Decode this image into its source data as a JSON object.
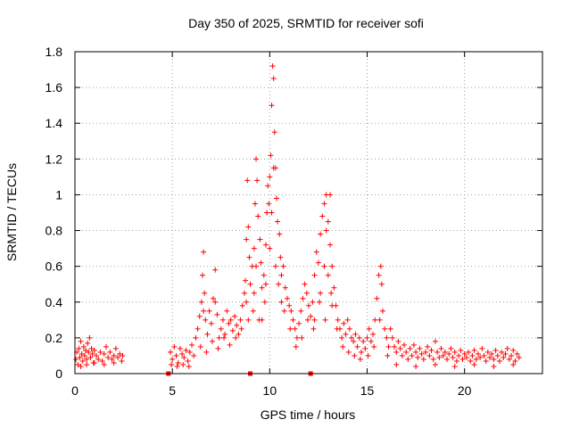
{
  "chart_data": {
    "type": "scatter",
    "title": "Day 350 of 2025, SRMTID for receiver sofi",
    "xlabel": "GPS time / hours",
    "ylabel": "SRMTID / TECUs",
    "xlim": [
      0,
      24
    ],
    "ylim": [
      0,
      1.8
    ],
    "x_ticks": [
      0,
      5,
      10,
      15,
      20
    ],
    "x_tick_labels": [
      "0",
      "5",
      "10",
      "15",
      "20"
    ],
    "y_ticks": [
      0,
      0.2,
      0.4,
      0.6,
      0.8,
      1,
      1.2,
      1.4,
      1.6,
      1.8
    ],
    "y_tick_labels": [
      "0",
      "0.2",
      "0.4",
      "0.6",
      "0.8",
      "1",
      "1.2",
      "1.4",
      "1.6",
      "1.8"
    ],
    "grid": true,
    "marker": "plus",
    "marker_color": "#ff0000",
    "gap_markers_x": [
      4.8,
      9.0,
      12.1
    ],
    "series": [
      {
        "name": "SRMTID",
        "points": [
          [
            0.05,
            0.08
          ],
          [
            0.1,
            0.12
          ],
          [
            0.15,
            0.05
          ],
          [
            0.2,
            0.14
          ],
          [
            0.25,
            0.09
          ],
          [
            0.3,
            0.18
          ],
          [
            0.35,
            0.11
          ],
          [
            0.4,
            0.07
          ],
          [
            0.45,
            0.15
          ],
          [
            0.5,
            0.1
          ],
          [
            0.55,
            0.13
          ],
          [
            0.6,
            0.08
          ],
          [
            0.65,
            0.17
          ],
          [
            0.7,
            0.12
          ],
          [
            0.75,
            0.2
          ],
          [
            0.8,
            0.09
          ],
          [
            0.85,
            0.14
          ],
          [
            0.9,
            0.11
          ],
          [
            0.95,
            0.06
          ],
          [
            1.0,
            0.13
          ],
          [
            1.1,
            0.1
          ],
          [
            1.2,
            0.08
          ],
          [
            1.3,
            0.12
          ],
          [
            1.4,
            0.07
          ],
          [
            1.5,
            0.11
          ],
          [
            1.6,
            0.15
          ],
          [
            1.7,
            0.09
          ],
          [
            1.8,
            0.12
          ],
          [
            1.9,
            0.08
          ],
          [
            2.0,
            0.1
          ],
          [
            2.1,
            0.14
          ],
          [
            2.2,
            0.09
          ],
          [
            2.3,
            0.11
          ],
          [
            2.4,
            0.07
          ],
          [
            2.45,
            0.1
          ],
          [
            0.3,
            0.04
          ],
          [
            0.6,
            0.05
          ],
          [
            1.0,
            0.06
          ],
          [
            1.5,
            0.05
          ],
          [
            2.0,
            0.06
          ],
          [
            4.9,
            0.12
          ],
          [
            5.0,
            0.08
          ],
          [
            5.1,
            0.15
          ],
          [
            5.2,
            0.1
          ],
          [
            5.3,
            0.06
          ],
          [
            5.4,
            0.14
          ],
          [
            5.5,
            0.11
          ],
          [
            5.6,
            0.09
          ],
          [
            5.7,
            0.13
          ],
          [
            5.8,
            0.07
          ],
          [
            5.9,
            0.12
          ],
          [
            6.0,
            0.16
          ],
          [
            6.1,
            0.1
          ],
          [
            6.2,
            0.2
          ],
          [
            6.3,
            0.25
          ],
          [
            6.4,
            0.32
          ],
          [
            6.5,
            0.4
          ],
          [
            6.55,
            0.55
          ],
          [
            6.6,
            0.68
          ],
          [
            6.65,
            0.45
          ],
          [
            6.7,
            0.3
          ],
          [
            6.8,
            0.22
          ],
          [
            6.9,
            0.35
          ],
          [
            7.0,
            0.28
          ],
          [
            7.1,
            0.42
          ],
          [
            7.2,
            0.58
          ],
          [
            7.3,
            0.33
          ],
          [
            7.4,
            0.2
          ],
          [
            7.5,
            0.25
          ],
          [
            7.6,
            0.3
          ],
          [
            7.7,
            0.22
          ],
          [
            7.8,
            0.35
          ],
          [
            7.9,
            0.28
          ],
          [
            8.0,
            0.3
          ],
          [
            8.1,
            0.24
          ],
          [
            8.2,
            0.32
          ],
          [
            8.3,
            0.27
          ],
          [
            8.4,
            0.22
          ],
          [
            8.5,
            0.3
          ],
          [
            8.6,
            0.38
          ],
          [
            8.7,
            0.45
          ],
          [
            8.75,
            0.52
          ],
          [
            8.8,
            0.75
          ],
          [
            8.85,
            1.08
          ],
          [
            8.9,
            0.82
          ],
          [
            8.95,
            0.65
          ],
          [
            9.0,
            0.5
          ],
          [
            9.1,
            0.6
          ],
          [
            9.2,
            0.7
          ],
          [
            9.25,
            0.95
          ],
          [
            9.3,
            1.2
          ],
          [
            9.35,
            1.08
          ],
          [
            9.4,
            0.88
          ],
          [
            9.5,
            0.75
          ],
          [
            9.55,
            0.62
          ],
          [
            9.6,
            0.48
          ],
          [
            9.7,
            0.55
          ],
          [
            9.8,
            0.72
          ],
          [
            9.85,
            0.9
          ],
          [
            9.9,
            1.05
          ],
          [
            9.95,
            0.95
          ],
          [
            10.0,
            1.1
          ],
          [
            10.05,
            1.22
          ],
          [
            10.1,
            1.5
          ],
          [
            10.15,
            1.72
          ],
          [
            10.2,
            1.65
          ],
          [
            10.25,
            1.35
          ],
          [
            10.3,
            1.15
          ],
          [
            10.35,
            0.98
          ],
          [
            10.4,
            0.85
          ],
          [
            10.5,
            0.78
          ],
          [
            10.55,
            0.65
          ],
          [
            10.6,
            0.55
          ],
          [
            10.7,
            0.6
          ],
          [
            10.8,
            0.48
          ],
          [
            10.9,
            0.42
          ],
          [
            11.0,
            0.38
          ],
          [
            11.1,
            0.35
          ],
          [
            11.2,
            0.3
          ],
          [
            11.3,
            0.25
          ],
          [
            11.4,
            0.2
          ],
          [
            11.5,
            0.28
          ],
          [
            11.6,
            0.35
          ],
          [
            11.7,
            0.42
          ],
          [
            11.8,
            0.5
          ],
          [
            11.9,
            0.45
          ],
          [
            12.0,
            0.38
          ],
          [
            12.1,
            0.32
          ],
          [
            12.2,
            0.4
          ],
          [
            12.3,
            0.55
          ],
          [
            12.4,
            0.68
          ],
          [
            12.5,
            0.62
          ],
          [
            12.6,
            0.78
          ],
          [
            12.7,
            0.88
          ],
          [
            12.8,
            0.95
          ],
          [
            12.9,
            1.0
          ],
          [
            13.0,
            0.85
          ],
          [
            13.1,
            0.72
          ],
          [
            13.2,
            0.6
          ],
          [
            13.3,
            0.48
          ],
          [
            13.4,
            0.38
          ],
          [
            13.5,
            0.3
          ],
          [
            13.6,
            0.25
          ],
          [
            13.7,
            0.2
          ],
          [
            13.8,
            0.28
          ],
          [
            13.9,
            0.22
          ],
          [
            14.0,
            0.3
          ],
          [
            14.1,
            0.25
          ],
          [
            14.2,
            0.2
          ],
          [
            14.3,
            0.18
          ],
          [
            14.4,
            0.22
          ],
          [
            14.5,
            0.15
          ],
          [
            14.6,
            0.2
          ],
          [
            14.7,
            0.12
          ],
          [
            14.8,
            0.18
          ],
          [
            14.9,
            0.14
          ],
          [
            15.0,
            0.2
          ],
          [
            15.1,
            0.25
          ],
          [
            15.2,
            0.18
          ],
          [
            15.3,
            0.22
          ],
          [
            15.4,
            0.3
          ],
          [
            15.5,
            0.42
          ],
          [
            15.6,
            0.55
          ],
          [
            15.7,
            0.6
          ],
          [
            15.75,
            0.5
          ],
          [
            15.8,
            0.35
          ],
          [
            15.9,
            0.25
          ],
          [
            16.0,
            0.2
          ],
          [
            16.1,
            0.15
          ],
          [
            16.2,
            0.25
          ],
          [
            16.3,
            0.2
          ],
          [
            16.4,
            0.15
          ],
          [
            16.5,
            0.12
          ],
          [
            16.6,
            0.18
          ],
          [
            16.7,
            0.14
          ],
          [
            16.8,
            0.1
          ],
          [
            16.9,
            0.16
          ],
          [
            17.0,
            0.12
          ],
          [
            17.1,
            0.08
          ],
          [
            17.2,
            0.14
          ],
          [
            17.3,
            0.1
          ],
          [
            17.4,
            0.16
          ],
          [
            17.5,
            0.12
          ],
          [
            17.6,
            0.09
          ],
          [
            17.7,
            0.14
          ],
          [
            17.8,
            0.11
          ],
          [
            17.9,
            0.08
          ],
          [
            18.0,
            0.12
          ],
          [
            18.1,
            0.15
          ],
          [
            18.2,
            0.1
          ],
          [
            18.3,
            0.13
          ],
          [
            18.4,
            0.08
          ],
          [
            18.5,
            0.18
          ],
          [
            18.6,
            0.12
          ],
          [
            18.7,
            0.09
          ],
          [
            18.8,
            0.14
          ],
          [
            18.9,
            0.1
          ],
          [
            19.0,
            0.12
          ],
          [
            19.1,
            0.08
          ],
          [
            19.2,
            0.11
          ],
          [
            19.3,
            0.14
          ],
          [
            19.4,
            0.09
          ],
          [
            19.5,
            0.12
          ],
          [
            19.6,
            0.07
          ],
          [
            19.7,
            0.1
          ],
          [
            19.8,
            0.13
          ],
          [
            19.9,
            0.08
          ],
          [
            20.0,
            0.11
          ],
          [
            20.1,
            0.09
          ],
          [
            20.2,
            0.12
          ],
          [
            20.3,
            0.07
          ],
          [
            20.4,
            0.1
          ],
          [
            20.5,
            0.13
          ],
          [
            20.6,
            0.08
          ],
          [
            20.7,
            0.11
          ],
          [
            20.8,
            0.09
          ],
          [
            20.9,
            0.14
          ],
          [
            21.0,
            0.1
          ],
          [
            21.1,
            0.07
          ],
          [
            21.2,
            0.12
          ],
          [
            21.3,
            0.09
          ],
          [
            21.4,
            0.11
          ],
          [
            21.5,
            0.08
          ],
          [
            21.6,
            0.13
          ],
          [
            21.7,
            0.1
          ],
          [
            21.8,
            0.07
          ],
          [
            21.9,
            0.12
          ],
          [
            22.0,
            0.09
          ],
          [
            22.1,
            0.11
          ],
          [
            22.2,
            0.14
          ],
          [
            22.3,
            0.08
          ],
          [
            22.4,
            0.1
          ],
          [
            22.5,
            0.13
          ],
          [
            22.6,
            0.07
          ],
          [
            22.7,
            0.11
          ],
          [
            22.8,
            0.09
          ],
          [
            6.45,
            0.15
          ],
          [
            6.75,
            0.12
          ],
          [
            7.05,
            0.18
          ],
          [
            7.35,
            0.14
          ],
          [
            7.65,
            0.2
          ],
          [
            7.95,
            0.16
          ],
          [
            8.25,
            0.2
          ],
          [
            8.55,
            0.25
          ],
          [
            9.15,
            0.35
          ],
          [
            9.45,
            0.3
          ],
          [
            9.75,
            0.4
          ],
          [
            10.45,
            0.5
          ],
          [
            10.75,
            0.35
          ],
          [
            11.05,
            0.25
          ],
          [
            11.35,
            0.15
          ],
          [
            11.65,
            0.2
          ],
          [
            11.95,
            0.3
          ],
          [
            12.25,
            0.25
          ],
          [
            12.55,
            0.4
          ],
          [
            12.85,
            0.3
          ],
          [
            13.15,
            0.45
          ],
          [
            13.45,
            0.25
          ],
          [
            13.75,
            0.15
          ],
          [
            14.05,
            0.12
          ],
          [
            14.35,
            0.1
          ],
          [
            14.65,
            0.08
          ],
          [
            15.05,
            0.1
          ],
          [
            15.35,
            0.15
          ],
          [
            15.65,
            0.3
          ],
          [
            16.05,
            0.1
          ],
          [
            8.8,
            0.4
          ],
          [
            9.3,
            0.6
          ],
          [
            10.1,
            0.9
          ],
          [
            10.2,
            1.15
          ],
          [
            10.0,
            0.7
          ],
          [
            9.8,
            0.5
          ],
          [
            9.2,
            0.45
          ],
          [
            8.9,
            0.3
          ],
          [
            12.8,
            0.6
          ],
          [
            13.0,
            0.55
          ],
          [
            12.6,
            0.45
          ],
          [
            13.2,
            0.38
          ],
          [
            6.6,
            0.35
          ],
          [
            7.2,
            0.4
          ],
          [
            10.3,
            0.6
          ],
          [
            10.6,
            0.4
          ],
          [
            9.6,
            0.3
          ],
          [
            12.3,
            0.3
          ],
          [
            12.9,
            0.8
          ],
          [
            13.1,
            1.0
          ],
          [
            4.95,
            0.05
          ],
          [
            5.25,
            0.04
          ],
          [
            5.55,
            0.05
          ],
          [
            5.85,
            0.04
          ],
          [
            16.5,
            0.05
          ],
          [
            17.5,
            0.04
          ],
          [
            18.5,
            0.05
          ],
          [
            19.5,
            0.04
          ],
          [
            20.5,
            0.05
          ],
          [
            21.5,
            0.04
          ],
          [
            22.5,
            0.05
          ]
        ]
      }
    ]
  }
}
